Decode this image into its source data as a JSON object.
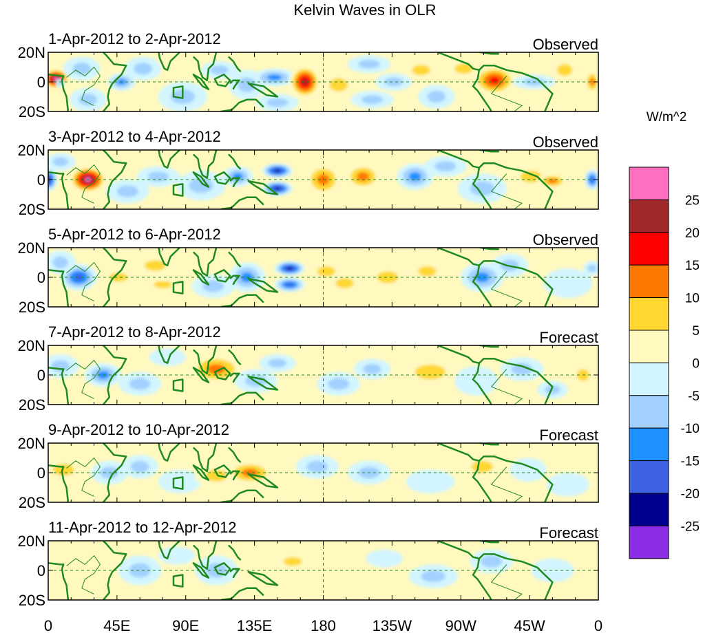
{
  "chart_data": {
    "type": "heatmap",
    "title": "Kelvin Waves in OLR",
    "colorbar": {
      "unit": "W/m^2",
      "ticks": [
        25,
        20,
        15,
        10,
        5,
        0,
        -5,
        -10,
        -15,
        -20,
        -25
      ],
      "colors": [
        "#ff6fc0",
        "#a0282a",
        "#ff0000",
        "#ff7800",
        "#ffd730",
        "#fff9c0",
        "#d2f5ff",
        "#a2d1ff",
        "#1f90ff",
        "#3d62e4",
        "#00008e",
        "#8c2ee8"
      ]
    },
    "x_ticks": [
      "0",
      "45E",
      "90E",
      "135E",
      "180",
      "135W",
      "90W",
      "45W",
      "0"
    ],
    "y_ticks": [
      "20N",
      "0",
      "20S"
    ],
    "xlim": [
      0,
      360
    ],
    "ylim": [
      -20,
      20
    ],
    "panels": [
      {
        "range": "1-Apr-2012 to 2-Apr-2012",
        "label": "Observed",
        "blobs": [
          [
            5,
            2,
            9,
            7,
            26
          ],
          [
            8,
            -1,
            3,
            3,
            -9
          ],
          [
            22,
            9,
            12,
            8,
            -8
          ],
          [
            26,
            -12,
            12,
            8,
            -7
          ],
          [
            48,
            0,
            9,
            6,
            -14
          ],
          [
            62,
            9,
            12,
            8,
            -6
          ],
          [
            88,
            -10,
            16,
            10,
            -7
          ],
          [
            112,
            8,
            12,
            6,
            -8
          ],
          [
            130,
            -2,
            12,
            10,
            -6
          ],
          [
            148,
            3,
            14,
            6,
            -12
          ],
          [
            150,
            -14,
            14,
            6,
            -8
          ],
          [
            168,
            0,
            10,
            11,
            22
          ],
          [
            190,
            -2,
            12,
            9,
            8
          ],
          [
            210,
            12,
            14,
            6,
            -8
          ],
          [
            212,
            -12,
            14,
            6,
            -7
          ],
          [
            226,
            0,
            12,
            6,
            -10
          ],
          [
            244,
            8,
            12,
            7,
            7
          ],
          [
            254,
            -10,
            12,
            8,
            -7
          ],
          [
            272,
            9,
            12,
            7,
            6
          ],
          [
            292,
            1,
            14,
            10,
            17
          ],
          [
            318,
            0,
            14,
            5,
            -10
          ],
          [
            338,
            8,
            10,
            8,
            6
          ],
          [
            356,
            0,
            5,
            8,
            12
          ]
        ]
      },
      {
        "range": "3-Apr-2012 to 4-Apr-2012",
        "label": "Observed",
        "blobs": [
          [
            0,
            0,
            6,
            8,
            -22
          ],
          [
            8,
            12,
            10,
            6,
            -6
          ],
          [
            26,
            0,
            12,
            9,
            27
          ],
          [
            52,
            -8,
            14,
            8,
            -6
          ],
          [
            72,
            2,
            14,
            7,
            -7
          ],
          [
            100,
            -4,
            16,
            10,
            -8
          ],
          [
            124,
            2,
            10,
            7,
            -13
          ],
          [
            150,
            6,
            10,
            5,
            -23
          ],
          [
            150,
            -6,
            10,
            5,
            -23
          ],
          [
            180,
            0,
            12,
            11,
            15
          ],
          [
            206,
            2,
            12,
            9,
            12
          ],
          [
            240,
            2,
            12,
            9,
            -11
          ],
          [
            260,
            9,
            14,
            7,
            -8
          ],
          [
            284,
            -6,
            16,
            10,
            -9
          ],
          [
            316,
            2,
            14,
            8,
            8
          ],
          [
            330,
            -1,
            10,
            5,
            12
          ],
          [
            356,
            0,
            5,
            7,
            -17
          ]
        ]
      },
      {
        "range": "5-Apr-2012 to 6-Apr-2012",
        "label": "Observed",
        "blobs": [
          [
            20,
            0,
            12,
            9,
            -20
          ],
          [
            8,
            10,
            10,
            8,
            -8
          ],
          [
            46,
            0,
            12,
            6,
            10
          ],
          [
            70,
            8,
            14,
            7,
            6
          ],
          [
            75,
            -5,
            12,
            5,
            10
          ],
          [
            108,
            -6,
            14,
            8,
            -8
          ],
          [
            130,
            0,
            12,
            10,
            -12
          ],
          [
            158,
            6,
            10,
            5,
            -22
          ],
          [
            158,
            -5,
            10,
            5,
            -18
          ],
          [
            182,
            4,
            12,
            7,
            9
          ],
          [
            194,
            -4,
            12,
            7,
            9
          ],
          [
            222,
            0,
            14,
            8,
            7
          ],
          [
            248,
            4,
            12,
            7,
            7
          ],
          [
            284,
            0,
            14,
            10,
            -12
          ],
          [
            302,
            8,
            12,
            8,
            -7
          ],
          [
            340,
            -4,
            16,
            10,
            -5
          ],
          [
            356,
            6,
            6,
            5,
            -6
          ]
        ]
      },
      {
        "range": "7-Apr-2012 to 8-Apr-2012",
        "label": "Forecast",
        "blobs": [
          [
            8,
            6,
            12,
            8,
            -6
          ],
          [
            36,
            0,
            12,
            8,
            -11
          ],
          [
            60,
            -6,
            14,
            8,
            -6
          ],
          [
            78,
            12,
            12,
            6,
            -5
          ],
          [
            110,
            4,
            18,
            10,
            14
          ],
          [
            136,
            -4,
            14,
            8,
            -8
          ],
          [
            150,
            8,
            12,
            6,
            -6
          ],
          [
            190,
            -6,
            14,
            8,
            -9
          ],
          [
            212,
            4,
            12,
            7,
            -6
          ],
          [
            250,
            2,
            20,
            10,
            8
          ],
          [
            280,
            -4,
            14,
            10,
            -5
          ],
          [
            310,
            4,
            14,
            8,
            -9
          ],
          [
            330,
            -10,
            10,
            6,
            -7
          ],
          [
            350,
            0,
            8,
            8,
            7
          ]
        ]
      },
      {
        "range": "9-Apr-2012 to 10-Apr-2012",
        "label": "Forecast",
        "blobs": [
          [
            10,
            2,
            14,
            8,
            6
          ],
          [
            40,
            0,
            12,
            8,
            -6
          ],
          [
            60,
            4,
            12,
            8,
            -7
          ],
          [
            86,
            -6,
            14,
            8,
            -5
          ],
          [
            110,
            -2,
            14,
            8,
            6
          ],
          [
            132,
            0,
            16,
            8,
            13
          ],
          [
            150,
            12,
            14,
            6,
            5
          ],
          [
            176,
            4,
            14,
            8,
            -6
          ],
          [
            210,
            0,
            14,
            8,
            -10
          ],
          [
            250,
            -6,
            16,
            8,
            -5
          ],
          [
            284,
            4,
            14,
            8,
            6
          ],
          [
            314,
            2,
            12,
            8,
            -5
          ],
          [
            340,
            -8,
            14,
            8,
            -5
          ]
        ]
      },
      {
        "range": "11-Apr-2012 to 12-Apr-2012",
        "label": "Forecast",
        "blobs": [
          [
            20,
            0,
            12,
            8,
            3
          ],
          [
            60,
            0,
            14,
            10,
            -7
          ],
          [
            84,
            10,
            12,
            6,
            -5
          ],
          [
            110,
            0,
            14,
            10,
            -6
          ],
          [
            140,
            -4,
            12,
            8,
            4
          ],
          [
            160,
            6,
            12,
            6,
            6
          ],
          [
            186,
            -2,
            14,
            10,
            4
          ],
          [
            220,
            8,
            12,
            6,
            -5
          ],
          [
            252,
            -4,
            16,
            8,
            -6
          ],
          [
            290,
            6,
            14,
            8,
            -6
          ],
          [
            330,
            0,
            14,
            8,
            -4
          ]
        ]
      }
    ]
  }
}
